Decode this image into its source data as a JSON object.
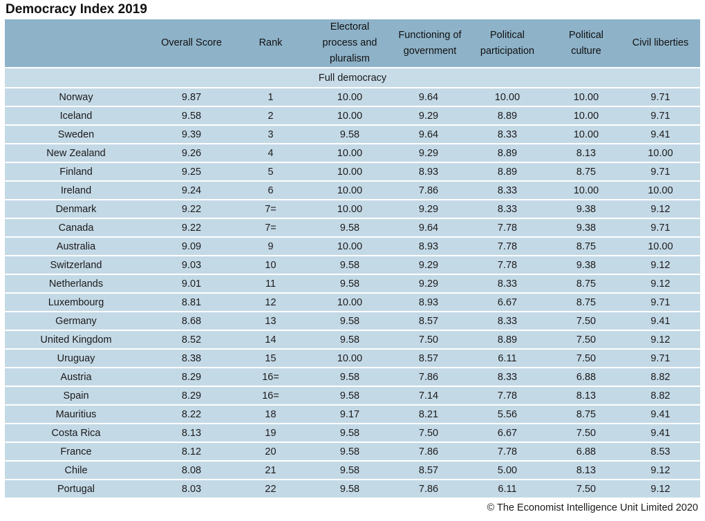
{
  "title": "Democracy Index 2019",
  "columns": [
    "",
    "Overall Score",
    "Rank",
    "Electoral process and pluralism",
    "Functioning of government",
    "Political participation",
    "Political culture",
    "Civil liberties"
  ],
  "section_label": "Full democracy",
  "rows": [
    [
      "Norway",
      "9.87",
      "1",
      "10.00",
      "9.64",
      "10.00",
      "10.00",
      "9.71"
    ],
    [
      "Iceland",
      "9.58",
      "2",
      "10.00",
      "9.29",
      "8.89",
      "10.00",
      "9.71"
    ],
    [
      "Sweden",
      "9.39",
      "3",
      "9.58",
      "9.64",
      "8.33",
      "10.00",
      "9.41"
    ],
    [
      "New Zealand",
      "9.26",
      "4",
      "10.00",
      "9.29",
      "8.89",
      "8.13",
      "10.00"
    ],
    [
      "Finland",
      "9.25",
      "5",
      "10.00",
      "8.93",
      "8.89",
      "8.75",
      "9.71"
    ],
    [
      "Ireland",
      "9.24",
      "6",
      "10.00",
      "7.86",
      "8.33",
      "10.00",
      "10.00"
    ],
    [
      "Denmark",
      "9.22",
      "7=",
      "10.00",
      "9.29",
      "8.33",
      "9.38",
      "9.12"
    ],
    [
      "Canada",
      "9.22",
      "7=",
      "9.58",
      "9.64",
      "7.78",
      "9.38",
      "9.71"
    ],
    [
      "Australia",
      "9.09",
      "9",
      "10.00",
      "8.93",
      "7.78",
      "8.75",
      "10.00"
    ],
    [
      "Switzerland",
      "9.03",
      "10",
      "9.58",
      "9.29",
      "7.78",
      "9.38",
      "9.12"
    ],
    [
      "Netherlands",
      "9.01",
      "11",
      "9.58",
      "9.29",
      "8.33",
      "8.75",
      "9.12"
    ],
    [
      "Luxembourg",
      "8.81",
      "12",
      "10.00",
      "8.93",
      "6.67",
      "8.75",
      "9.71"
    ],
    [
      "Germany",
      "8.68",
      "13",
      "9.58",
      "8.57",
      "8.33",
      "7.50",
      "9.41"
    ],
    [
      "United Kingdom",
      "8.52",
      "14",
      "9.58",
      "7.50",
      "8.89",
      "7.50",
      "9.12"
    ],
    [
      "Uruguay",
      "8.38",
      "15",
      "10.00",
      "8.57",
      "6.11",
      "7.50",
      "9.71"
    ],
    [
      "Austria",
      "8.29",
      "16=",
      "9.58",
      "7.86",
      "8.33",
      "6.88",
      "8.82"
    ],
    [
      "Spain",
      "8.29",
      "16=",
      "9.58",
      "7.14",
      "7.78",
      "8.13",
      "8.82"
    ],
    [
      "Mauritius",
      "8.22",
      "18",
      "9.17",
      "8.21",
      "5.56",
      "8.75",
      "9.41"
    ],
    [
      "Costa Rica",
      "8.13",
      "19",
      "9.58",
      "7.50",
      "6.67",
      "7.50",
      "9.41"
    ],
    [
      "France",
      "8.12",
      "20",
      "9.58",
      "7.86",
      "7.78",
      "6.88",
      "8.53"
    ],
    [
      "Chile",
      "8.08",
      "21",
      "9.58",
      "8.57",
      "5.00",
      "8.13",
      "9.12"
    ],
    [
      "Portugal",
      "8.03",
      "22",
      "9.58",
      "7.86",
      "6.11",
      "7.50",
      "9.12"
    ]
  ],
  "footer": "© The Economist Intelligence Unit Limited 2020"
}
